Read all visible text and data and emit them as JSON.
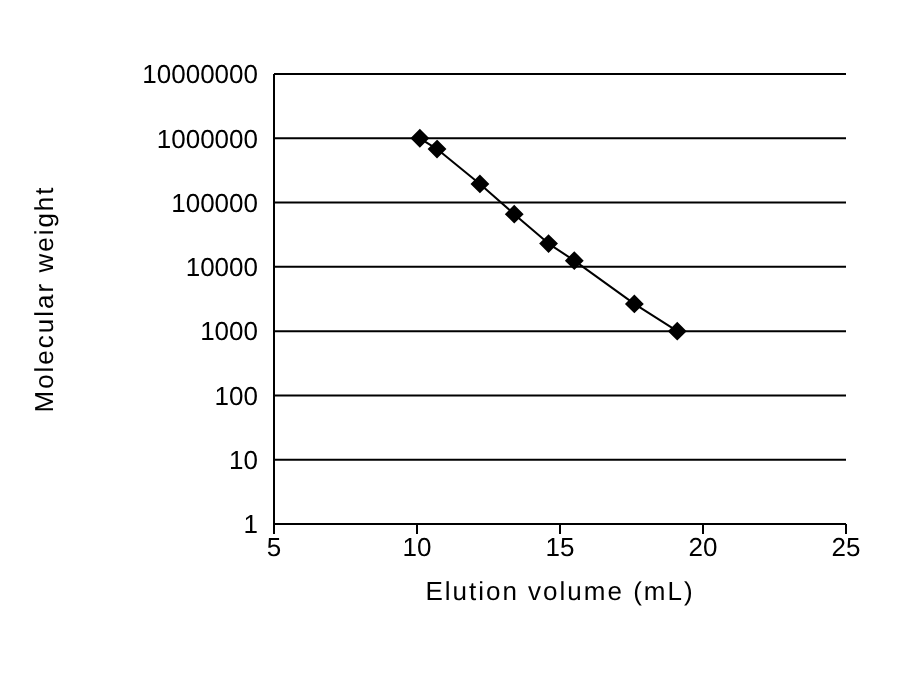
{
  "chart_data": {
    "type": "line",
    "xlabel": "Elution volume (mL)",
    "ylabel": "Molecular weight",
    "x": [
      10.1,
      10.7,
      12.2,
      13.4,
      14.6,
      15.5,
      17.6,
      19.1
    ],
    "series": [
      {
        "color": "#000000",
        "values": [
          1000000,
          680000,
          195000,
          66000,
          23000,
          12500,
          2650,
          1000
        ]
      }
    ],
    "xlim": [
      5,
      25
    ],
    "xticks": [
      5,
      10,
      15,
      20,
      25
    ],
    "ylim": [
      1,
      10000000
    ],
    "yticks": [
      1,
      10,
      100,
      1000,
      10000,
      100000,
      1000000,
      10000000
    ],
    "log": "y",
    "grid": "y",
    "marker": "diamond",
    "line_style": "solid"
  }
}
